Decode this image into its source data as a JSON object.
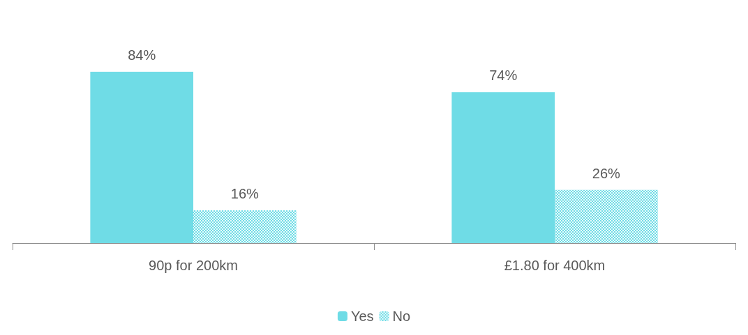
{
  "chart_data": {
    "type": "bar",
    "categories": [
      "90p for 200km",
      "£1.80 for 400km"
    ],
    "series": [
      {
        "name": "Yes",
        "color": "#6fdce6",
        "values": [
          84,
          74
        ],
        "value_labels": [
          "84%",
          "74%"
        ]
      },
      {
        "name": "No",
        "color": "#6fdce6",
        "values": [
          16,
          26
        ],
        "value_labels": [
          "16%",
          "26%"
        ]
      }
    ],
    "legend": "bottom",
    "grid": false
  }
}
